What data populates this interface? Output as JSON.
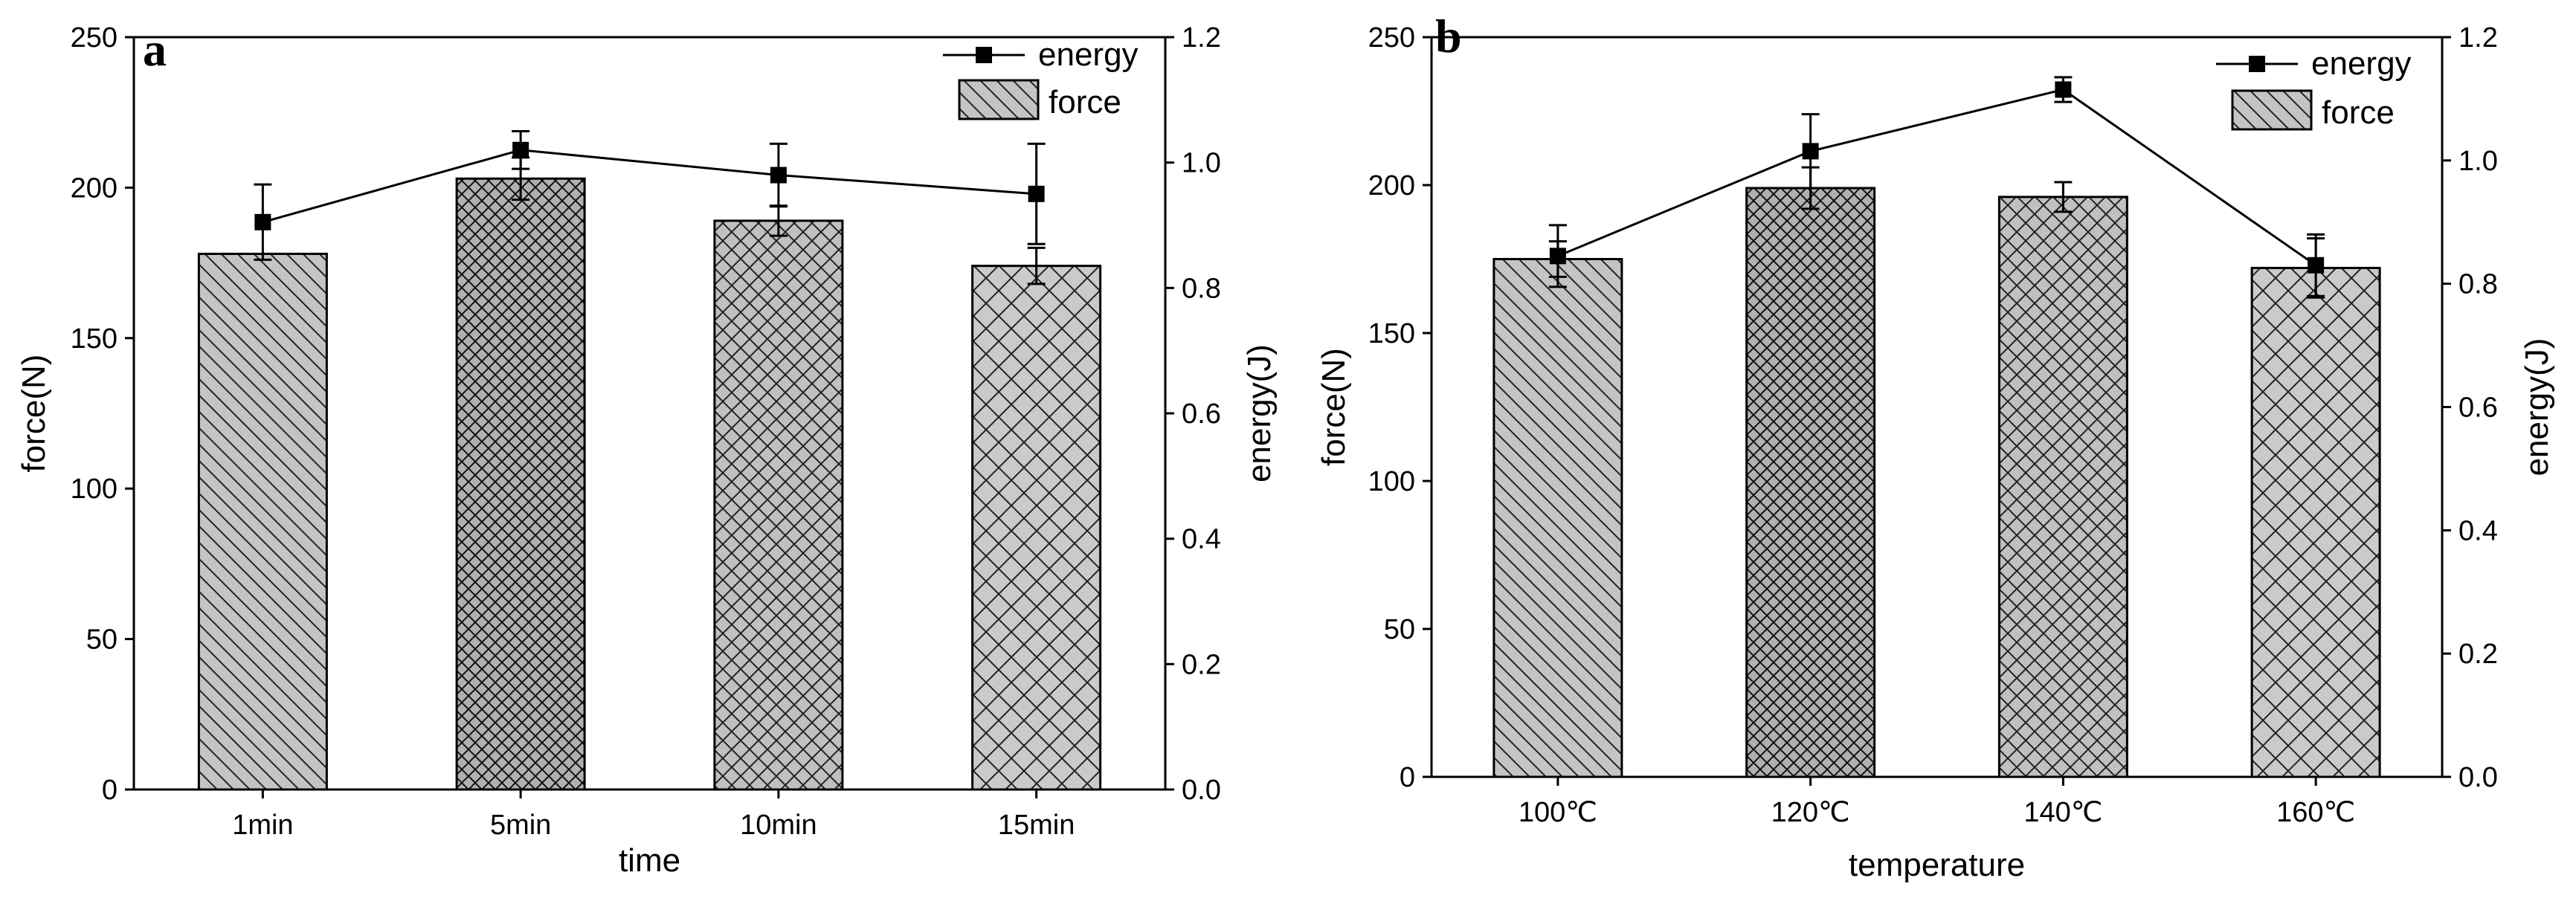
{
  "chart_data": [
    {
      "type": "bar",
      "panel_label": "a",
      "xlabel": "time",
      "ylabel": "force(N)",
      "y2label": "energy(J)",
      "categories": [
        "1min",
        "5min",
        "10min",
        "15min"
      ],
      "ylim": [
        0,
        250
      ],
      "yticks": [
        0,
        50,
        100,
        150,
        200,
        250
      ],
      "y2lim": [
        0,
        1.2
      ],
      "y2ticks": [
        "0.0",
        "0.2",
        "0.4",
        "0.6",
        "0.8",
        "1.0",
        "1.2"
      ],
      "series": [
        {
          "name": "force",
          "kind": "bar",
          "axis": "left",
          "values": [
            178,
            203,
            189,
            174
          ],
          "errors": [
            0,
            7,
            5,
            6
          ]
        },
        {
          "name": "energy",
          "kind": "line",
          "axis": "right",
          "values": [
            0.905,
            1.02,
            0.98,
            0.95
          ],
          "errors": [
            0.06,
            0.03,
            0.05,
            0.08
          ]
        }
      ],
      "patterns": [
        "diag-down",
        "crosshatch-dense",
        "crosshatch-medium",
        "crosshatch-wide"
      ],
      "legend": {
        "position": "top-right",
        "entries": [
          "energy",
          "force"
        ]
      }
    },
    {
      "type": "bar",
      "panel_label": "b",
      "xlabel": "temperature",
      "ylabel": "force(N)",
      "y2label": "energy(J)",
      "categories": [
        "100℃",
        "120℃",
        "140℃",
        "160℃"
      ],
      "ylim": [
        0,
        250
      ],
      "yticks": [
        0,
        50,
        100,
        150,
        200,
        250
      ],
      "y2lim": [
        0,
        1.2
      ],
      "y2ticks": [
        "0.0",
        "0.2",
        "0.4",
        "0.6",
        "0.8",
        "1.0",
        "1.2"
      ],
      "series": [
        {
          "name": "force",
          "kind": "bar",
          "axis": "left",
          "values": [
            175,
            199,
            196,
            172
          ],
          "errors": [
            6,
            7,
            5,
            10
          ]
        },
        {
          "name": "energy",
          "kind": "line",
          "axis": "right",
          "values": [
            0.845,
            1.015,
            1.115,
            0.83
          ],
          "errors": [
            0.05,
            0.06,
            0.02,
            0.05
          ]
        }
      ],
      "patterns": [
        "diag-down",
        "crosshatch-dense",
        "crosshatch-medium",
        "crosshatch-wide"
      ],
      "legend": {
        "position": "top-right",
        "entries": [
          "energy",
          "force"
        ]
      }
    }
  ]
}
